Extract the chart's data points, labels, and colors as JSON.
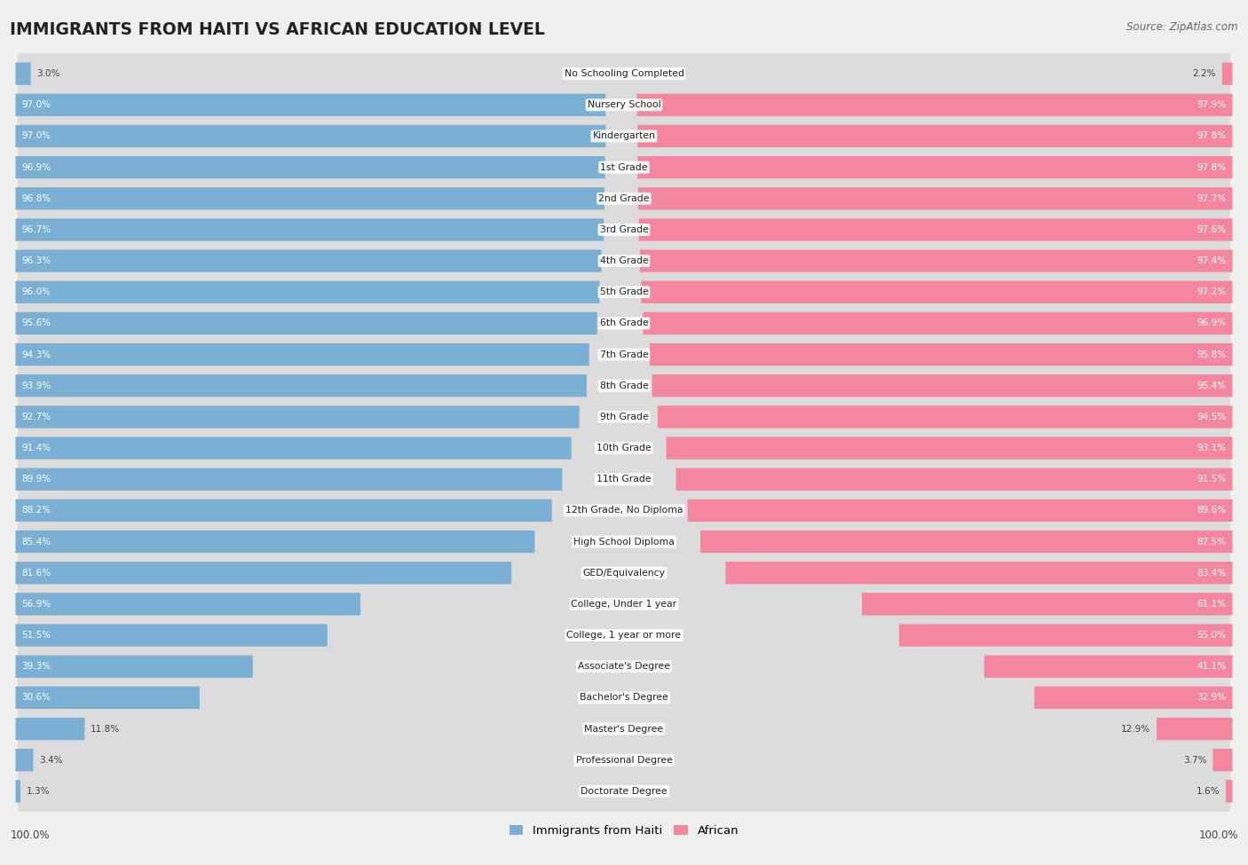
{
  "title": "IMMIGRANTS FROM HAITI VS AFRICAN EDUCATION LEVEL",
  "source": "Source: ZipAtlas.com",
  "categories": [
    "No Schooling Completed",
    "Nursery School",
    "Kindergarten",
    "1st Grade",
    "2nd Grade",
    "3rd Grade",
    "4th Grade",
    "5th Grade",
    "6th Grade",
    "7th Grade",
    "8th Grade",
    "9th Grade",
    "10th Grade",
    "11th Grade",
    "12th Grade, No Diploma",
    "High School Diploma",
    "GED/Equivalency",
    "College, Under 1 year",
    "College, 1 year or more",
    "Associate's Degree",
    "Bachelor's Degree",
    "Master's Degree",
    "Professional Degree",
    "Doctorate Degree"
  ],
  "haiti_values": [
    3.0,
    97.0,
    97.0,
    96.9,
    96.8,
    96.7,
    96.3,
    96.0,
    95.6,
    94.3,
    93.9,
    92.7,
    91.4,
    89.9,
    88.2,
    85.4,
    81.6,
    56.9,
    51.5,
    39.3,
    30.6,
    11.8,
    3.4,
    1.3
  ],
  "african_values": [
    2.2,
    97.9,
    97.8,
    97.8,
    97.7,
    97.6,
    97.4,
    97.2,
    96.9,
    95.8,
    95.4,
    94.5,
    93.1,
    91.5,
    89.6,
    87.5,
    83.4,
    61.1,
    55.0,
    41.1,
    32.9,
    12.9,
    3.7,
    1.6
  ],
  "haiti_color": "#7bafd4",
  "african_color": "#f4879f",
  "background_color": "#f0f0f0",
  "row_bg_color": "#e2e2e2",
  "legend_haiti": "Immigrants from Haiti",
  "legend_african": "African",
  "label_colors_white_threshold": 15.0
}
